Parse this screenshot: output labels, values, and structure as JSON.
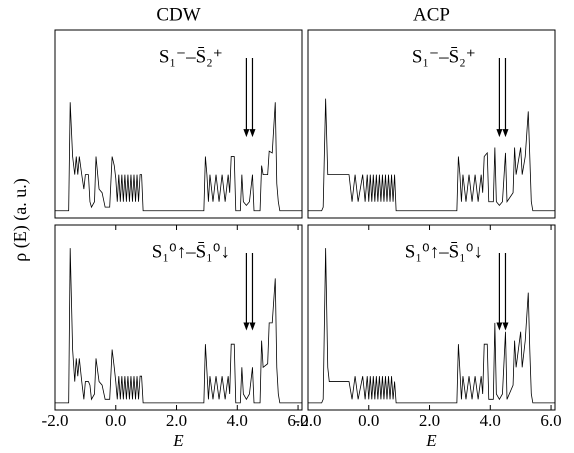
{
  "chart_data": [
    {
      "type": "line",
      "title": "CDW",
      "annotation": "S₁⁻–S̄₂⁺",
      "ylabel": "ρ (E)  (a. u.)",
      "xlim": [
        -2,
        6.13
      ],
      "ylim": [
        -0.04,
        1
      ],
      "x": [
        -2,
        -1.55,
        -1.5,
        -1.42,
        -1.35,
        -1.3,
        -1.25,
        -1.2,
        -1.12,
        -1.05,
        -1,
        -0.9,
        -0.85,
        -0.8,
        -0.7,
        -0.65,
        -0.55,
        -0.45,
        -0.35,
        -0.2,
        -0.12,
        -0.05,
        0,
        0.05,
        0.1,
        0.15,
        0.2,
        0.25,
        0.3,
        0.35,
        0.4,
        0.45,
        0.5,
        0.55,
        0.6,
        0.65,
        0.7,
        0.75,
        0.8,
        0.85,
        0.9,
        2.9,
        2.95,
        3,
        3.05,
        3.1,
        3.2,
        3.3,
        3.4,
        3.5,
        3.6,
        3.7,
        3.75,
        3.8,
        3.9,
        3.95,
        4.1,
        4.15,
        4.2,
        4.3,
        4.4,
        4.5,
        4.55,
        4.75,
        4.8,
        4.85,
        5,
        5.05,
        5.15,
        5.25,
        5.3,
        5.35,
        5.4,
        6.13
      ],
      "series": [
        {
          "color": "#000000",
          "values": [
            0,
            0,
            0.6,
            0.3,
            0.2,
            0.3,
            0.2,
            0.3,
            0.2,
            0.12,
            0.2,
            0.2,
            0.05,
            0.02,
            0.05,
            0.3,
            0.12,
            0.1,
            0.02,
            0.02,
            0.3,
            0.25,
            0.18,
            0.05,
            0.2,
            0.05,
            0.2,
            0.05,
            0.2,
            0.05,
            0.2,
            0.05,
            0.2,
            0.05,
            0.2,
            0.05,
            0.2,
            0.05,
            0.2,
            0.2,
            0,
            0,
            0.3,
            0.2,
            0.05,
            0.2,
            0.05,
            0.2,
            0.05,
            0.2,
            0.05,
            0.2,
            0.1,
            0.3,
            0.3,
            0,
            0,
            0.2,
            0.05,
            0.03,
            0.05,
            0.2,
            0,
            0,
            0.25,
            0.2,
            0.2,
            0.33,
            0.32,
            0.6,
            0.15,
            0.05,
            0,
            0
          ]
        }
      ]
    },
    {
      "type": "line",
      "title": "ACP",
      "annotation": "S₁⁻–S̄₂⁺",
      "xlim": [
        -2,
        6.13
      ],
      "ylim": [
        -0.04,
        1
      ],
      "x": [
        -2,
        -1.55,
        -1.5,
        -1.42,
        -1.35,
        -1.3,
        -1.25,
        -1.2,
        -1.12,
        -1.05,
        -1,
        -0.9,
        -0.85,
        -0.8,
        -0.7,
        -0.65,
        -0.55,
        -0.45,
        -0.35,
        -0.2,
        -0.12,
        -0.05,
        0,
        0.05,
        0.1,
        0.15,
        0.2,
        0.25,
        0.3,
        0.35,
        0.4,
        0.45,
        0.5,
        0.55,
        0.6,
        0.65,
        0.7,
        0.75,
        0.8,
        0.85,
        0.9,
        2.9,
        2.95,
        3,
        3.05,
        3.1,
        3.2,
        3.3,
        3.4,
        3.5,
        3.6,
        3.7,
        3.75,
        3.8,
        3.9,
        3.95,
        4.1,
        4.15,
        4.2,
        4.3,
        4.4,
        4.5,
        4.55,
        4.75,
        4.8,
        4.85,
        5,
        5.05,
        5.15,
        5.25,
        5.3,
        5.35,
        5.4,
        6.13
      ],
      "series": [
        {
          "color": "#000000",
          "values": [
            0,
            0,
            0.02,
            0.62,
            0.2,
            0.2,
            0.2,
            0.2,
            0.2,
            0.2,
            0.2,
            0.2,
            0.2,
            0.2,
            0.2,
            0.2,
            0.05,
            0.2,
            0.05,
            0.2,
            0.05,
            0.2,
            0.05,
            0.2,
            0.05,
            0.2,
            0.05,
            0.2,
            0.05,
            0.2,
            0.05,
            0.2,
            0.05,
            0.2,
            0.05,
            0.2,
            0.05,
            0.2,
            0.05,
            0.2,
            0,
            0,
            0.3,
            0.2,
            0.05,
            0.2,
            0.05,
            0.2,
            0.05,
            0.2,
            0.05,
            0.2,
            0.1,
            0.3,
            0.32,
            0.05,
            0.05,
            0.35,
            0.05,
            0.03,
            0.05,
            0.32,
            0.05,
            0.1,
            0.35,
            0.2,
            0.35,
            0.2,
            0.3,
            0.55,
            0.3,
            0.05,
            0,
            0
          ]
        }
      ]
    },
    {
      "type": "line",
      "annotation": "S₁⁰↑–S̄₁⁰↓",
      "xlabel": "E",
      "xlim": [
        -2,
        6.13
      ],
      "ylim": [
        -0.04,
        1
      ],
      "xticks": [
        {
          "value": -2,
          "label": "-2.0"
        },
        {
          "value": 0,
          "label": "0.0"
        },
        {
          "value": 2,
          "label": "2.0"
        },
        {
          "value": 4,
          "label": "4.0"
        },
        {
          "value": 6,
          "label": "6.0"
        }
      ],
      "x": [
        -2,
        -1.55,
        -1.5,
        -1.42,
        -1.35,
        -1.3,
        -1.25,
        -1.2,
        -1.12,
        -1.05,
        -1,
        -0.9,
        -0.85,
        -0.8,
        -0.7,
        -0.65,
        -0.55,
        -0.45,
        -0.35,
        -0.2,
        -0.12,
        -0.05,
        0,
        0.05,
        0.1,
        0.15,
        0.2,
        0.25,
        0.3,
        0.35,
        0.4,
        0.45,
        0.5,
        0.55,
        0.6,
        0.65,
        0.7,
        0.75,
        0.8,
        0.85,
        0.9,
        2.9,
        2.95,
        3,
        3.05,
        3.1,
        3.2,
        3.3,
        3.4,
        3.5,
        3.6,
        3.7,
        3.75,
        3.8,
        3.9,
        3.95,
        4.1,
        4.15,
        4.2,
        4.3,
        4.4,
        4.5,
        4.55,
        4.75,
        4.8,
        4.85,
        5,
        5.05,
        5.15,
        5.25,
        5.3,
        5.35,
        5.4,
        6.13
      ],
      "series": [
        {
          "color": "#000000",
          "values": [
            0,
            0,
            0.87,
            0.3,
            0.12,
            0.25,
            0.15,
            0.25,
            0.12,
            0.02,
            0.12,
            0.12,
            0.1,
            0.02,
            0.05,
            0.25,
            0.12,
            0.1,
            0.02,
            0.02,
            0.3,
            0.2,
            0.12,
            0.02,
            0.15,
            0.02,
            0.15,
            0.02,
            0.15,
            0.02,
            0.15,
            0.02,
            0.15,
            0.02,
            0.15,
            0.02,
            0.15,
            0.02,
            0.15,
            0.15,
            0,
            0,
            0.33,
            0.18,
            0.02,
            0.15,
            0.02,
            0.15,
            0.02,
            0.15,
            0.02,
            0.15,
            0.05,
            0.33,
            0.33,
            0,
            0,
            0.2,
            0.05,
            0.02,
            0.05,
            0.2,
            0,
            0,
            0.35,
            0.2,
            0.22,
            0.45,
            0.45,
            0.7,
            0.2,
            0.05,
            0,
            0
          ]
        }
      ]
    },
    {
      "type": "line",
      "annotation": "S₁⁰↑–S̄₁⁰↓",
      "xlabel": "E",
      "xlim": [
        -2,
        6.13
      ],
      "ylim": [
        -0.04,
        1
      ],
      "xticks": [
        {
          "value": -2,
          "label": "-2.0"
        },
        {
          "value": 0,
          "label": "0.0"
        },
        {
          "value": 2,
          "label": "2.0"
        },
        {
          "value": 4,
          "label": "4.0"
        },
        {
          "value": 6,
          "label": "6.0"
        }
      ],
      "x": [
        -2,
        -1.55,
        -1.5,
        -1.42,
        -1.35,
        -1.3,
        -1.25,
        -1.2,
        -1.12,
        -1.05,
        -1,
        -0.9,
        -0.85,
        -0.8,
        -0.7,
        -0.65,
        -0.55,
        -0.45,
        -0.35,
        -0.2,
        -0.12,
        -0.05,
        0,
        0.05,
        0.1,
        0.15,
        0.2,
        0.25,
        0.3,
        0.35,
        0.4,
        0.45,
        0.5,
        0.55,
        0.6,
        0.65,
        0.7,
        0.75,
        0.8,
        0.85,
        0.9,
        2.9,
        2.95,
        3,
        3.05,
        3.1,
        3.2,
        3.3,
        3.4,
        3.5,
        3.6,
        3.7,
        3.75,
        3.8,
        3.9,
        3.95,
        4.1,
        4.15,
        4.2,
        4.3,
        4.4,
        4.5,
        4.55,
        4.75,
        4.8,
        4.85,
        5,
        5.05,
        5.15,
        5.25,
        5.3,
        5.35,
        5.4,
        6.13
      ],
      "series": [
        {
          "color": "#000000",
          "values": [
            0,
            0,
            0.02,
            0.87,
            0.2,
            0.12,
            0.12,
            0.12,
            0.12,
            0.12,
            0.12,
            0.12,
            0.12,
            0.12,
            0.12,
            0.12,
            0.02,
            0.15,
            0.02,
            0.15,
            0.02,
            0.15,
            0.02,
            0.15,
            0.02,
            0.15,
            0.02,
            0.15,
            0.02,
            0.15,
            0.02,
            0.15,
            0.02,
            0.15,
            0.02,
            0.15,
            0.02,
            0.15,
            0.02,
            0.12,
            0,
            0,
            0.33,
            0.18,
            0.02,
            0.15,
            0.02,
            0.15,
            0.02,
            0.15,
            0.02,
            0.15,
            0.05,
            0.33,
            0.33,
            0.02,
            0.02,
            0.45,
            0.05,
            0.02,
            0.05,
            0.4,
            0.02,
            0.1,
            0.35,
            0.2,
            0.4,
            0.2,
            0.35,
            0.62,
            0.3,
            0.05,
            0,
            0
          ]
        }
      ]
    }
  ]
}
